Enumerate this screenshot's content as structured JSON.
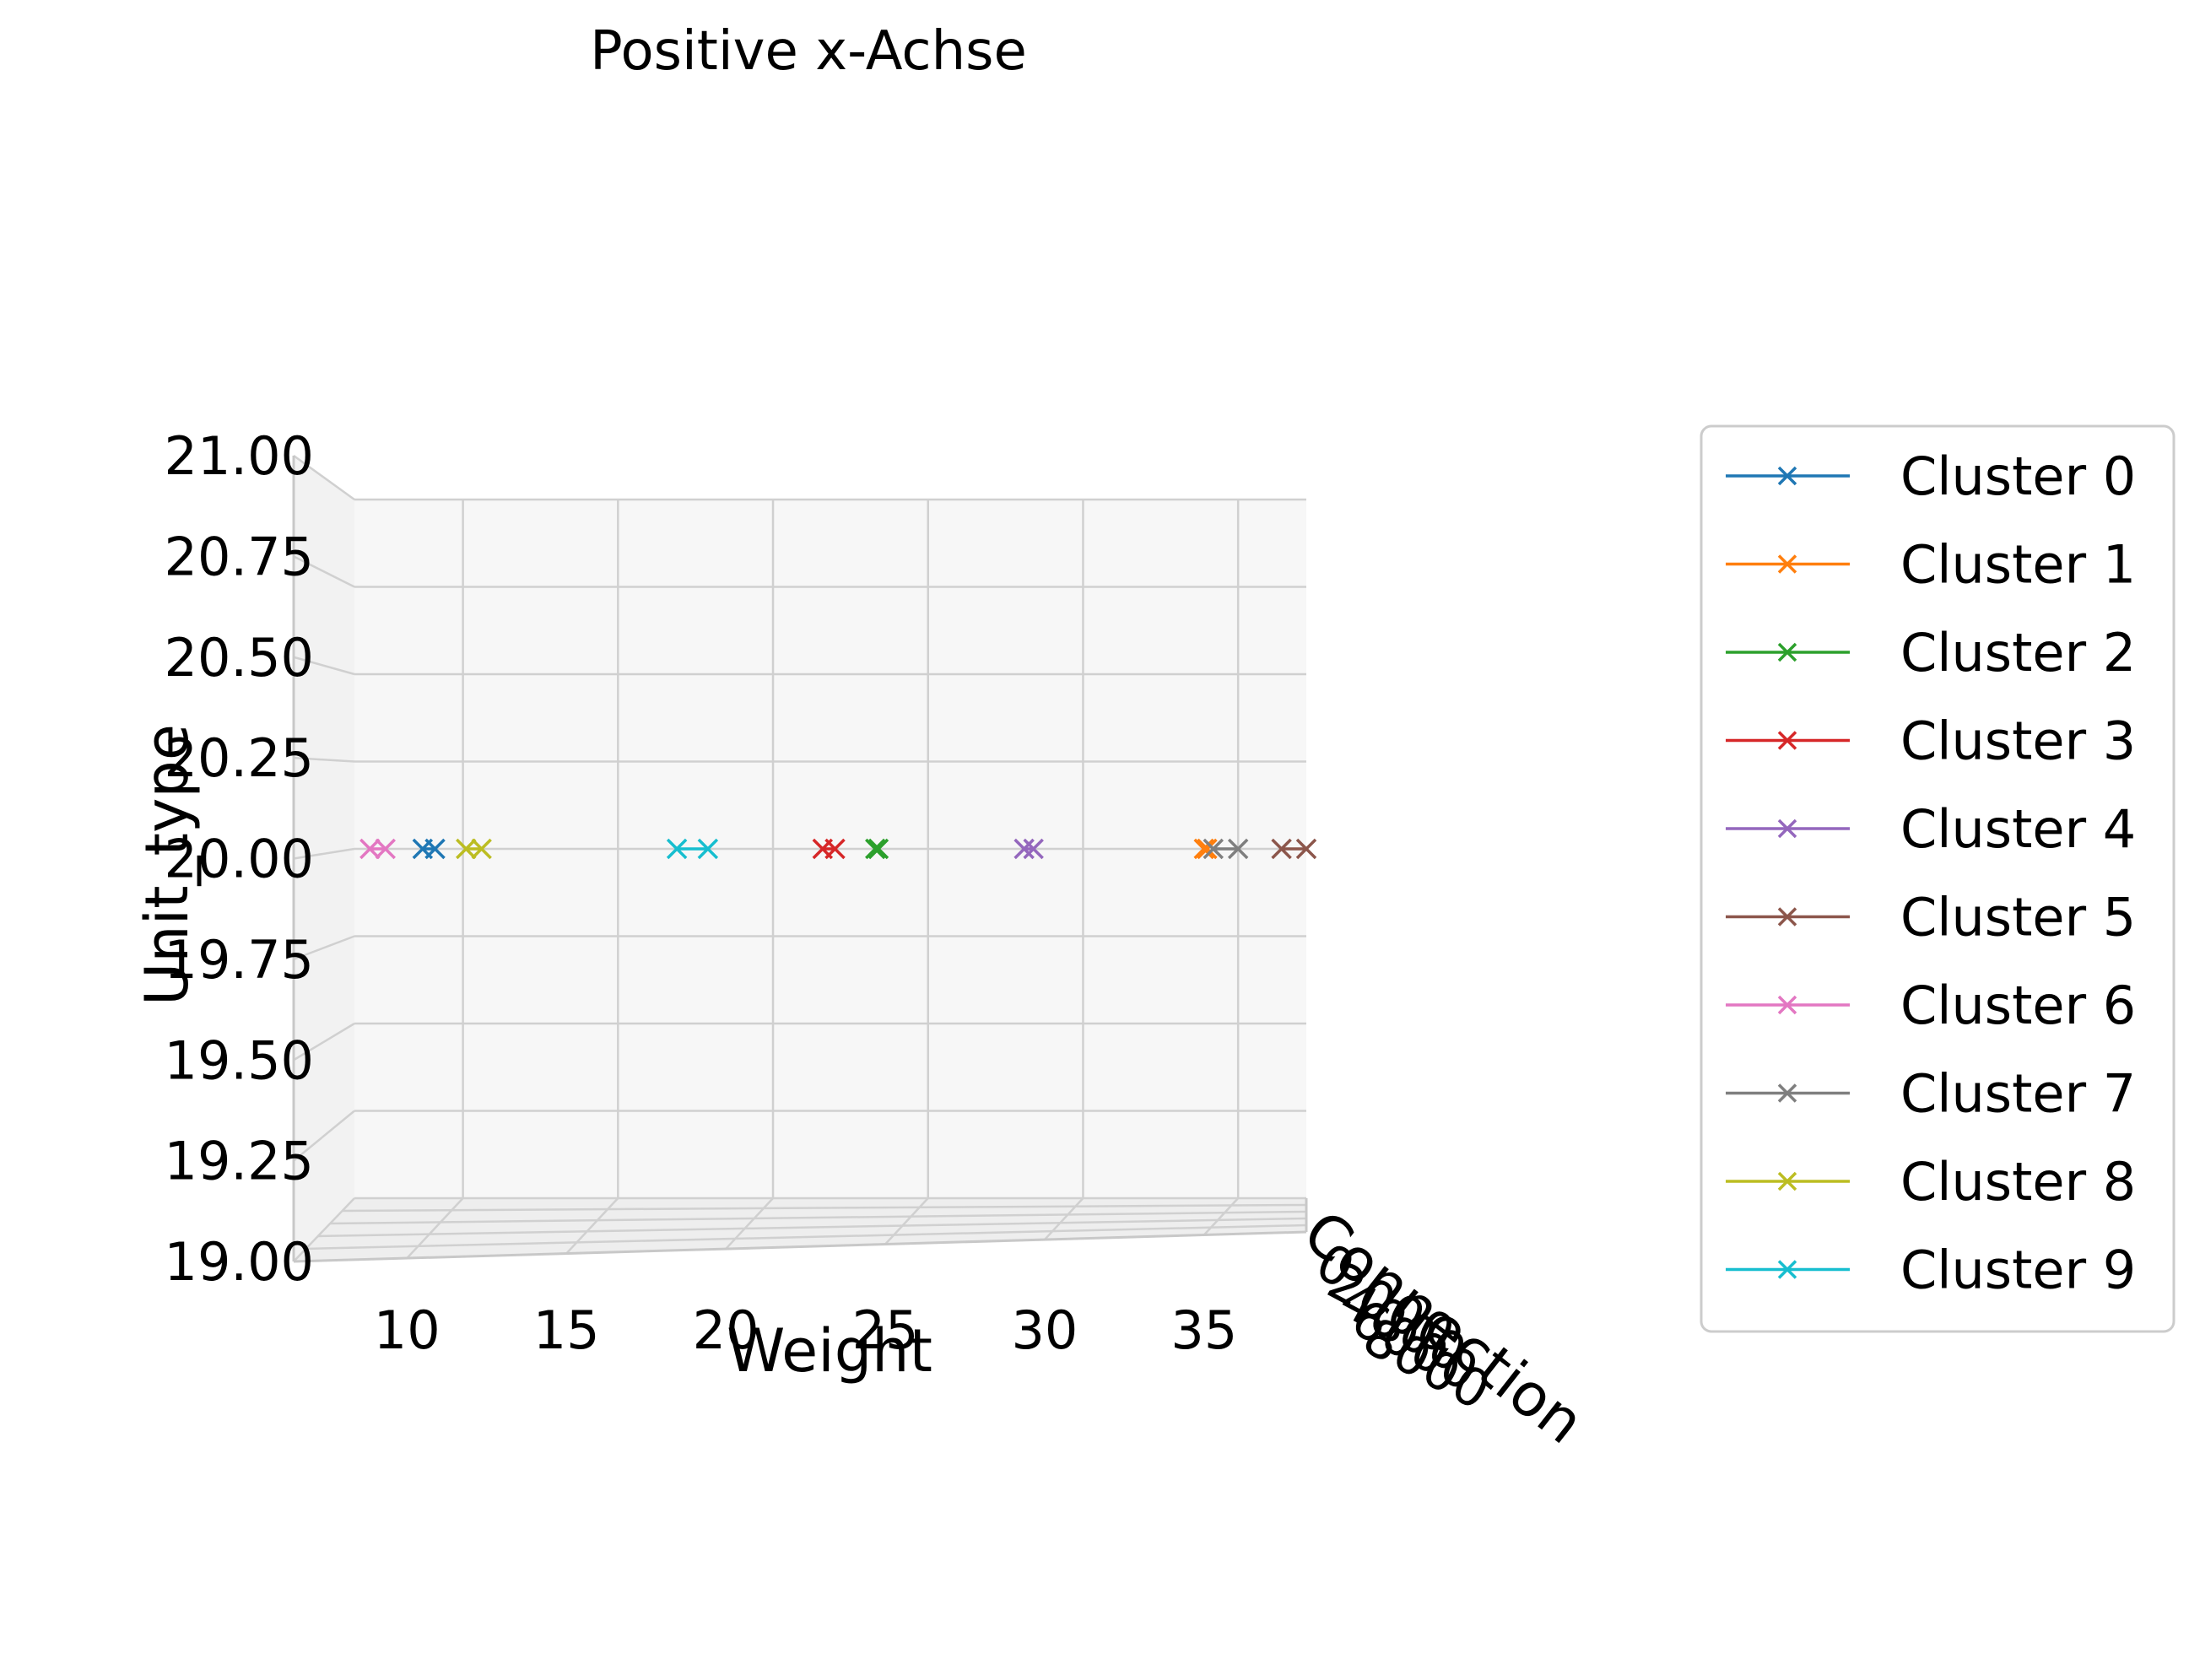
{
  "chart_data": {
    "type": "scatter",
    "title": "Positive x-Achse",
    "xlabel": "Weight",
    "ylabel": "Unit_type",
    "zlabel": "Connection",
    "xlim": [
      6.5,
      37.2
    ],
    "ylim": [
      19.0,
      21.0
    ],
    "xticks": [
      "10",
      "15",
      "20",
      "25",
      "30",
      "35"
    ],
    "yticks": [
      "19.00",
      "19.25",
      "19.50",
      "19.75",
      "20.00",
      "20.25",
      "20.50",
      "20.75",
      "21.00"
    ],
    "zticks": [
      "0",
      "2000",
      "4000",
      "6000",
      "8000"
    ],
    "grid": true,
    "legend_position": "right",
    "series": [
      {
        "name": "Cluster 0",
        "color": "#1f77b4",
        "x": [
          8.7,
          9.1
        ],
        "y": [
          20.0,
          20.0
        ]
      },
      {
        "name": "Cluster 1",
        "color": "#ff7f0e",
        "x": [
          33.9,
          34.0
        ],
        "y": [
          20.0,
          20.0
        ]
      },
      {
        "name": "Cluster 2",
        "color": "#2ca02c",
        "x": [
          23.3,
          23.4
        ],
        "y": [
          20.0,
          20.0
        ]
      },
      {
        "name": "Cluster 3",
        "color": "#d62728",
        "x": [
          21.6,
          22.0
        ],
        "y": [
          20.0,
          20.0
        ]
      },
      {
        "name": "Cluster 4",
        "color": "#9467bd",
        "x": [
          28.1,
          28.4
        ],
        "y": [
          20.0,
          20.0
        ]
      },
      {
        "name": "Cluster 5",
        "color": "#8c564b",
        "x": [
          36.4,
          37.2
        ],
        "y": [
          20.0,
          20.0
        ]
      },
      {
        "name": "Cluster 6",
        "color": "#e377c2",
        "x": [
          7.0,
          7.5
        ],
        "y": [
          20.0,
          20.0
        ]
      },
      {
        "name": "Cluster 7",
        "color": "#7f7f7f",
        "x": [
          34.2,
          35.0
        ],
        "y": [
          20.0,
          20.0
        ]
      },
      {
        "name": "Cluster 8",
        "color": "#bcbd22",
        "x": [
          10.1,
          10.6
        ],
        "y": [
          20.0,
          20.0
        ]
      },
      {
        "name": "Cluster 9",
        "color": "#17becf",
        "x": [
          16.9,
          17.9
        ],
        "y": [
          20.0,
          20.0
        ]
      }
    ]
  }
}
